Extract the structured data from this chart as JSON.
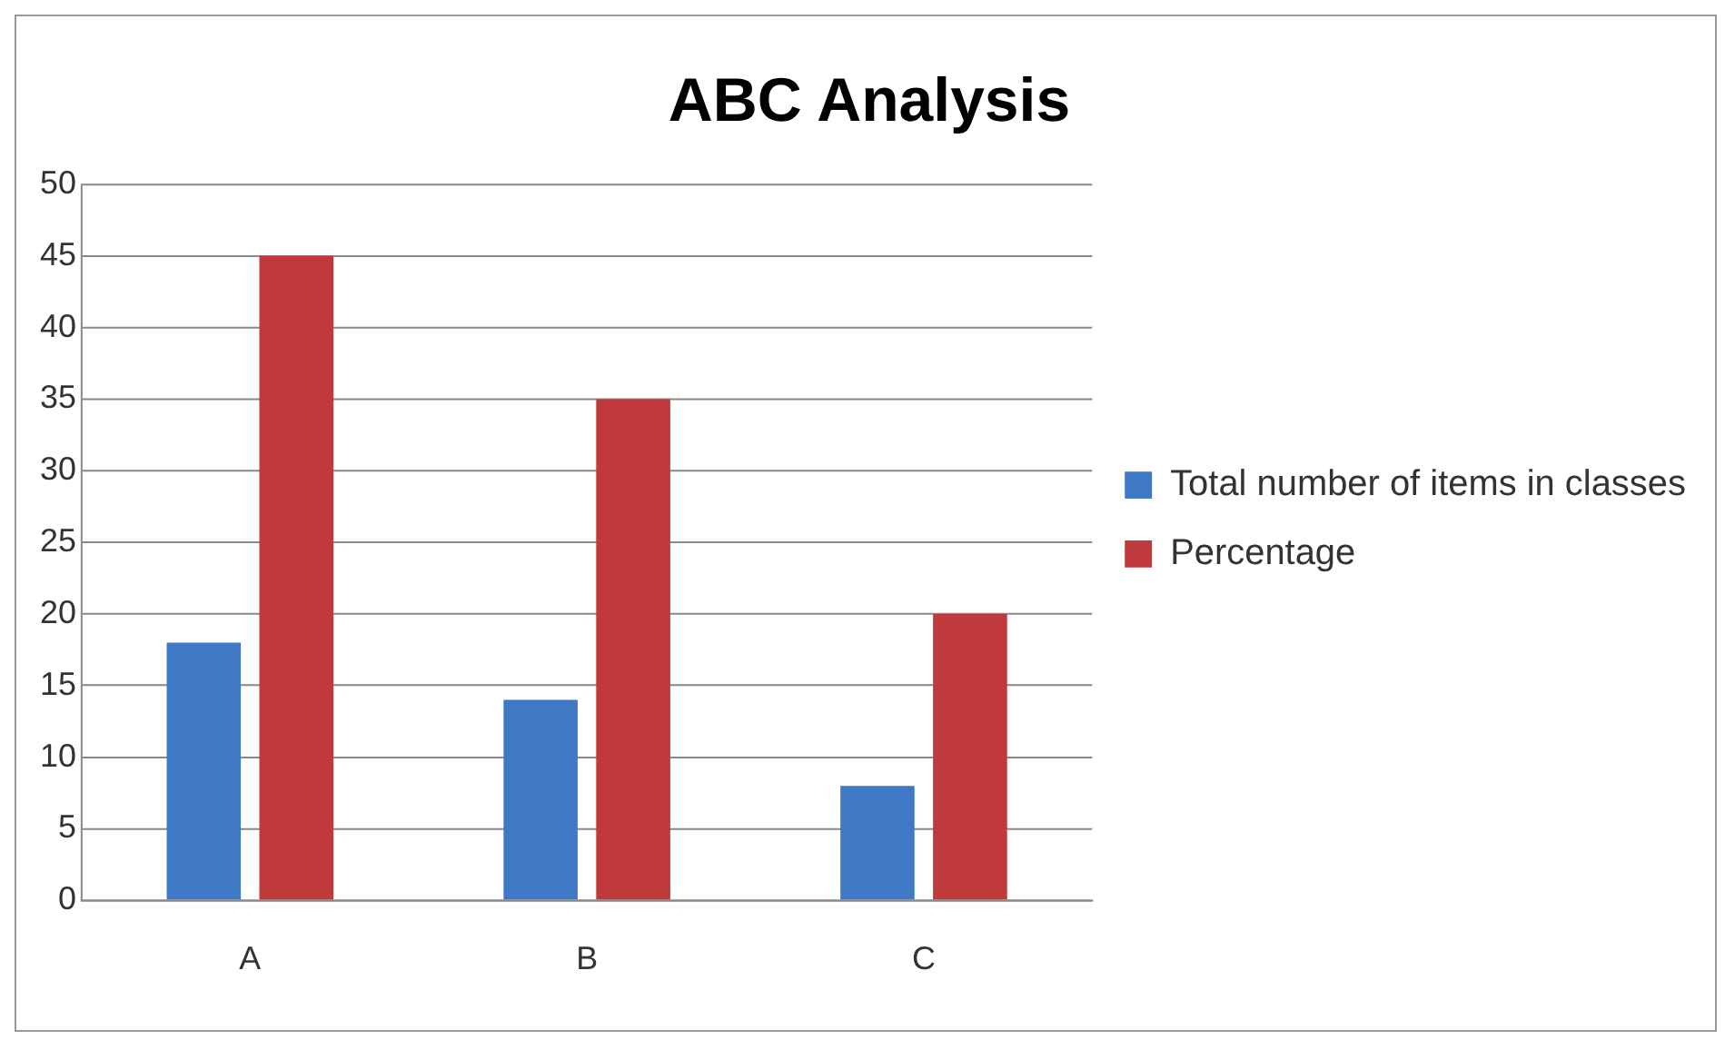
{
  "chart_data": {
    "type": "bar",
    "title": "ABC Analysis",
    "categories": [
      "A",
      "B",
      "C"
    ],
    "series": [
      {
        "name": "Total number of items in classes",
        "color": "#3f79c6",
        "values": [
          18,
          14,
          8
        ]
      },
      {
        "name": "Percentage",
        "color": "#c0393b",
        "values": [
          45,
          35,
          20
        ]
      }
    ],
    "ylim": [
      0,
      50
    ],
    "yticks": [
      0,
      5,
      10,
      15,
      20,
      25,
      30,
      35,
      40,
      45,
      50
    ],
    "grid": "y",
    "legend": "right"
  }
}
